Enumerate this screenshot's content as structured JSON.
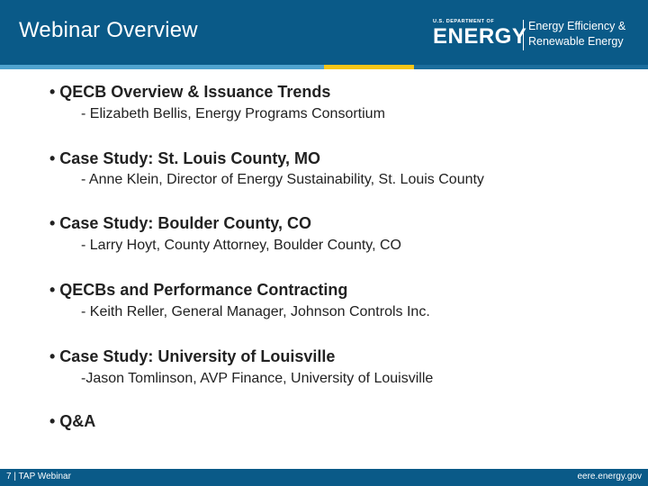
{
  "header": {
    "title": "Webinar Overview",
    "logo": {
      "doe_small": "U.S. DEPARTMENT OF",
      "doe_big": "ENERGY",
      "eere_line1": "Energy Efficiency &",
      "eere_line2": "Renewable Energy"
    }
  },
  "agenda": [
    {
      "title": "• QECB Overview & Issuance Trends",
      "speaker": "- Elizabeth Bellis, Energy Programs Consortium"
    },
    {
      "title": "• Case Study:  St. Louis County, MO",
      "speaker": "- Anne Klein,  Director of Energy Sustainability, St. Louis County"
    },
    {
      "title": "• Case Study: Boulder County, CO",
      "speaker": "- Larry Hoyt,  County Attorney, Boulder County, CO"
    },
    {
      "title": "• QECBs and Performance Contracting",
      "speaker": "- Keith Reller,  General Manager,  Johnson Controls Inc."
    },
    {
      "title": "• Case Study: University of Louisville",
      "speaker": "-Jason Tomlinson,  AVP Finance, University of Louisville"
    },
    {
      "title": "• Q&A",
      "speaker": ""
    }
  ],
  "footer": {
    "left": "7 | TAP Webinar",
    "right": "eere.energy.gov"
  },
  "colors": {
    "header_blue": "#0a5a88",
    "accent_light_blue": "#4fa3cf",
    "accent_yellow": "#f5c518"
  }
}
